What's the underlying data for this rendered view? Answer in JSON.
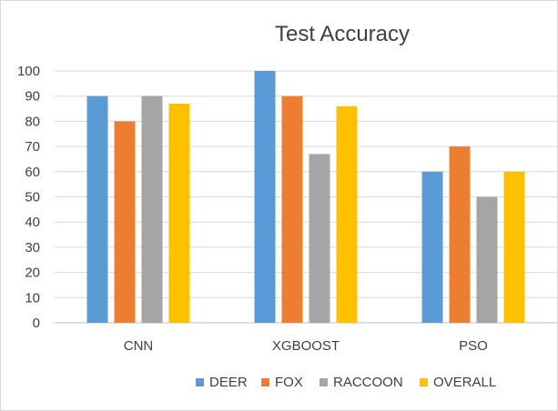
{
  "chart_data": {
    "type": "bar",
    "title": "Test Accuracy",
    "xlabel": "",
    "ylabel": "",
    "categories": [
      "CNN",
      "XGBOOST",
      "PSO"
    ],
    "series": [
      {
        "name": "DEER",
        "values": [
          90,
          100,
          60
        ],
        "color": "#5b9bd5"
      },
      {
        "name": "FOX",
        "values": [
          80,
          90,
          70
        ],
        "color": "#ed7d31"
      },
      {
        "name": "RACCOON",
        "values": [
          90,
          67,
          50
        ],
        "color": "#a5a5a5"
      },
      {
        "name": "OVERALL",
        "values": [
          87,
          86,
          60
        ],
        "color": "#ffc000"
      }
    ],
    "ylim": [
      0,
      100
    ],
    "yticks": [
      0,
      10,
      20,
      30,
      40,
      50,
      60,
      70,
      80,
      90,
      100
    ],
    "grid": true,
    "legend_position": "bottom"
  },
  "colors": {
    "gridline": "#d9d9d9",
    "axis": "#bfbfbf",
    "text": "#404040"
  }
}
